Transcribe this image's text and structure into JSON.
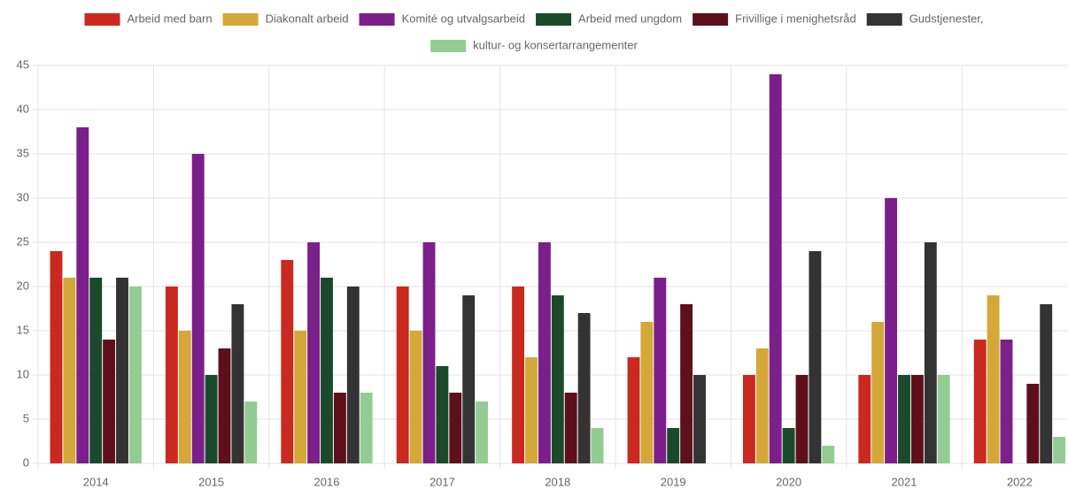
{
  "chart_data": {
    "type": "bar",
    "categories": [
      "2014",
      "2015",
      "2016",
      "2017",
      "2018",
      "2019",
      "2020",
      "2021",
      "2022"
    ],
    "series": [
      {
        "name": "Arbeid med barn",
        "color": "#c9291e",
        "values": [
          24,
          20,
          23,
          20,
          20,
          12,
          10,
          10,
          14
        ]
      },
      {
        "name": "Diakonalt arbeid",
        "color": "#d4a838",
        "values": [
          21,
          15,
          15,
          15,
          12,
          16,
          13,
          16,
          19
        ]
      },
      {
        "name": "Komité og utvalgsarbeid",
        "color": "#7b1f8a",
        "values": [
          38,
          35,
          25,
          25,
          25,
          21,
          44,
          30,
          14
        ]
      },
      {
        "name": "Arbeid med ungdom",
        "color": "#1a4a2a",
        "values": [
          21,
          10,
          21,
          11,
          19,
          4,
          4,
          10,
          0
        ]
      },
      {
        "name": "Frivillige i menighetsråd",
        "color": "#5e0f1c",
        "values": [
          14,
          13,
          8,
          8,
          8,
          18,
          10,
          10,
          9
        ]
      },
      {
        "name": "Gudstjenester,",
        "color": "#333333",
        "values": [
          21,
          18,
          20,
          19,
          17,
          10,
          24,
          25,
          18
        ]
      },
      {
        "name": "kultur- og konsertarrangementer",
        "color": "#93cc93",
        "values": [
          20,
          7,
          8,
          7,
          4,
          0,
          2,
          10,
          3
        ]
      }
    ],
    "ylim": [
      0,
      45
    ],
    "yticks": [
      0,
      5,
      10,
      15,
      20,
      25,
      30,
      35,
      40,
      45
    ],
    "grid": true,
    "legend": "top"
  }
}
